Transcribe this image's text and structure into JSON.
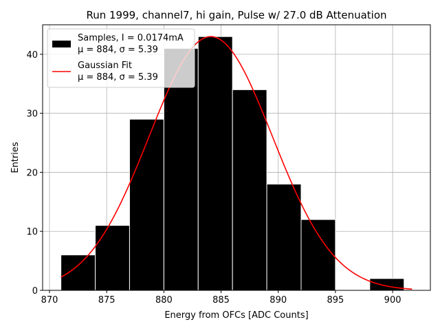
{
  "chart_data": {
    "type": "histogram",
    "title": "Run 1999, channel7, hi gain, Pulse w/ 27.0 dB Attenuation",
    "xlabel": "Energy from OFCs [ADC Counts]",
    "ylabel": "Entries",
    "xlim": [
      869.4,
      903.3
    ],
    "ylim": [
      0,
      45
    ],
    "xticks": [
      870,
      875,
      880,
      885,
      890,
      895,
      900
    ],
    "yticks": [
      0,
      10,
      20,
      30,
      40
    ],
    "grid": true,
    "bins": [
      {
        "x0": 871.0,
        "x1": 874.0,
        "count": 6
      },
      {
        "x0": 874.0,
        "x1": 877.0,
        "count": 11
      },
      {
        "x0": 877.0,
        "x1": 880.0,
        "count": 29
      },
      {
        "x0": 880.0,
        "x1": 883.0,
        "count": 41
      },
      {
        "x0": 883.0,
        "x1": 886.0,
        "count": 43
      },
      {
        "x0": 886.0,
        "x1": 889.0,
        "count": 34
      },
      {
        "x0": 889.0,
        "x1": 892.0,
        "count": 18
      },
      {
        "x0": 892.0,
        "x1": 895.0,
        "count": 12
      },
      {
        "x0": 895.0,
        "x1": 898.0,
        "count": 0
      },
      {
        "x0": 898.0,
        "x1": 901.0,
        "count": 2
      }
    ],
    "fit": {
      "type": "gaussian",
      "mu": 884.1,
      "sigma": 5.39,
      "amplitude": 43.0,
      "x_range": [
        871.0,
        901.7
      ],
      "color": "#ff0000"
    },
    "bar_color": "#000000",
    "legend_position": "upper-left",
    "legend": [
      {
        "name": "Samples, I = 0.0174mA",
        "stats": "μ = 884, σ = 5.39",
        "kind": "patch",
        "color": "#000000"
      },
      {
        "name": "Gaussian Fit",
        "stats": "μ = 884, σ = 5.39",
        "kind": "line",
        "color": "#ff0000"
      }
    ]
  }
}
